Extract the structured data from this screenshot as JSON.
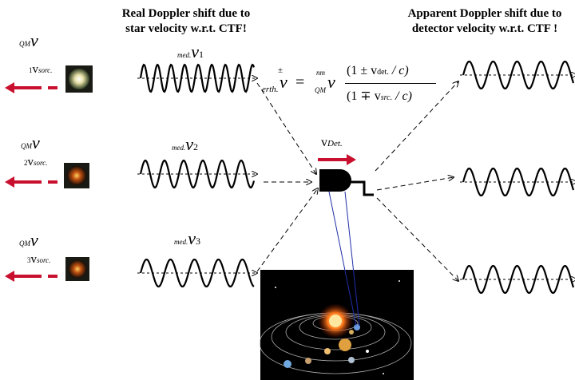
{
  "headings": {
    "left_line1": "Real Doppler shift due to",
    "left_line2": "star velocity w.r.t. CTF!",
    "right_line1": "Apparent Doppler shift due to",
    "right_line2": "detector velocity w.r.t. CTF !"
  },
  "sources": [
    {
      "index": "1",
      "nu_sub": "QM",
      "v_sub": "sorc."
    },
    {
      "index": "2",
      "nu_sub": "QM",
      "v_sub": "sorc."
    },
    {
      "index": "3",
      "nu_sub": "QM",
      "v_sub": "sorc."
    }
  ],
  "medium_labels": [
    {
      "prefix": "med.",
      "index": "1"
    },
    {
      "prefix": "med.",
      "index": "2"
    },
    {
      "prefix": "med.",
      "index": "3"
    }
  ],
  "formula": {
    "lhs_sup": "±",
    "lhs_sub": "erth.",
    "nu": "ν",
    "rhs_sup": "nm",
    "rhs_sub": "QM",
    "num_open": "(1 ± v",
    "num_sub": "det.",
    "num_close": " / c)",
    "den_open": "(1 ∓ v",
    "den_sub": "src.",
    "den_close": " / c)"
  },
  "detector": {
    "v_label": "v",
    "v_sub": "Det."
  },
  "colors": {
    "arrow": "#c8102e",
    "beam": "#1f2fa8",
    "space": "#000000"
  }
}
